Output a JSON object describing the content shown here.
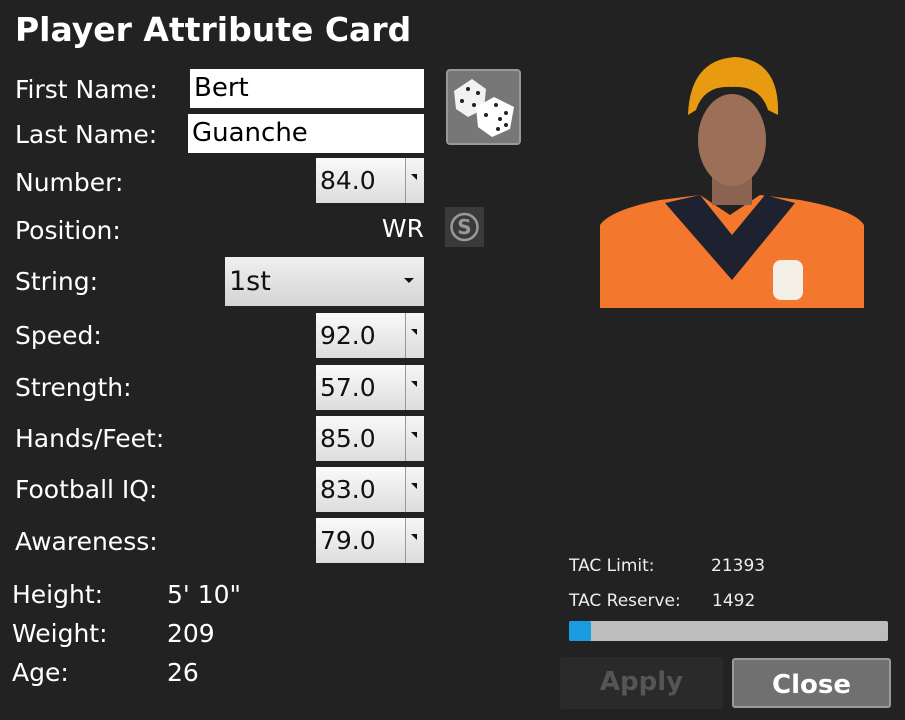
{
  "title": "Player Attribute Card",
  "first_name": {
    "label": "First Name:",
    "value": "Bert"
  },
  "last_name": {
    "label": "Last Name:",
    "value": "Guanche"
  },
  "number": {
    "label": "Number:",
    "value": "84.0"
  },
  "position": {
    "label": "Position:",
    "value": "WR"
  },
  "string": {
    "label": "String:",
    "value": "1st"
  },
  "speed": {
    "label": "Speed:",
    "value": "92.0"
  },
  "strength": {
    "label": "Strength:",
    "value": "57.0"
  },
  "hands": {
    "label": "Hands/Feet:",
    "value": "85.0"
  },
  "iq": {
    "label": "Football IQ:",
    "value": "83.0"
  },
  "awareness": {
    "label": "Awareness:",
    "value": "79.0"
  },
  "height": {
    "label": "Height:",
    "value": "5' 10\""
  },
  "weight": {
    "label": "Weight:",
    "value": "209"
  },
  "age": {
    "label": "Age:",
    "value": "26"
  },
  "tac": {
    "limit_label": "TAC Limit:",
    "limit": "21393",
    "reserve_label": "TAC Reserve:",
    "reserve": "1492",
    "progress_percent": 7,
    "bar_color": "#1a9be0"
  },
  "buttons": {
    "apply": "Apply",
    "close": "Close"
  },
  "icons": {
    "randomize": "dice-icon",
    "position_switch": "s-circle-icon"
  }
}
